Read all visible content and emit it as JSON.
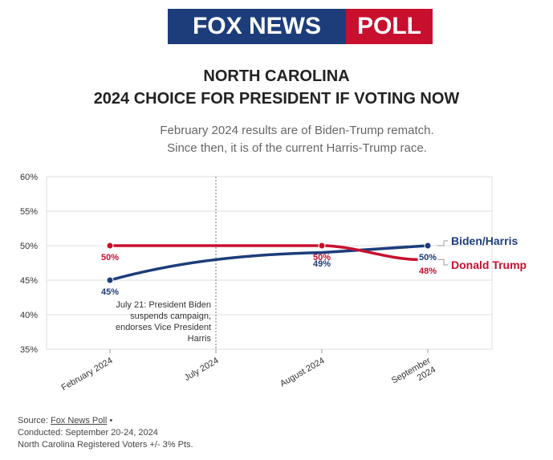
{
  "logo": {
    "left": "FOX NEWS",
    "right": "POLL"
  },
  "title_line1": "NORTH CAROLINA",
  "title_line2": "2024 CHOICE FOR PRESIDENT IF VOTING NOW",
  "subtitle_line1": "February 2024 results are of Biden-Trump rematch.",
  "subtitle_line2": "Since then, it is of the current Harris-Trump race.",
  "annotation": [
    "July 21: President Biden",
    "suspends campaign,",
    "endorses Vice President",
    "Harris"
  ],
  "footer": {
    "source_prefix": "Source: ",
    "source_link": "Fox News Poll",
    "source_suffix": " •",
    "conducted": "Conducted: September 20-24, 2024",
    "sample": "North Carolina Registered Voters +/- 3% Pts."
  },
  "colors": {
    "blue": "#1d3d7a",
    "red": "#c8102e",
    "grid": "#dddddd"
  },
  "chart_data": {
    "type": "line",
    "title": "2024 CHOICE FOR PRESIDENT IF VOTING NOW",
    "x_ticks": [
      "February 2024",
      "July 2024",
      "August 2024",
      "September 2024"
    ],
    "ylim": [
      35,
      60
    ],
    "y_ticks": [
      "60%",
      "55%",
      "50%",
      "45%",
      "40%",
      "35%"
    ],
    "grid": true,
    "series": [
      {
        "name": "Biden/Harris",
        "color": "#1d3d7a",
        "points": [
          {
            "x": "February 2024",
            "y": 45,
            "label": "45%"
          },
          {
            "x": "August 2024",
            "y": 49,
            "label": "49%"
          },
          {
            "x": "September 2024",
            "y": 50,
            "label": "50%"
          }
        ]
      },
      {
        "name": "Donald Trump",
        "color": "#c8102e",
        "points": [
          {
            "x": "February 2024",
            "y": 50,
            "label": "50%"
          },
          {
            "x": "August 2024",
            "y": 50,
            "label": "50%"
          },
          {
            "x": "September 2024",
            "y": 48,
            "label": "48%"
          }
        ]
      }
    ],
    "event_marker": {
      "x": "July 2024"
    }
  }
}
